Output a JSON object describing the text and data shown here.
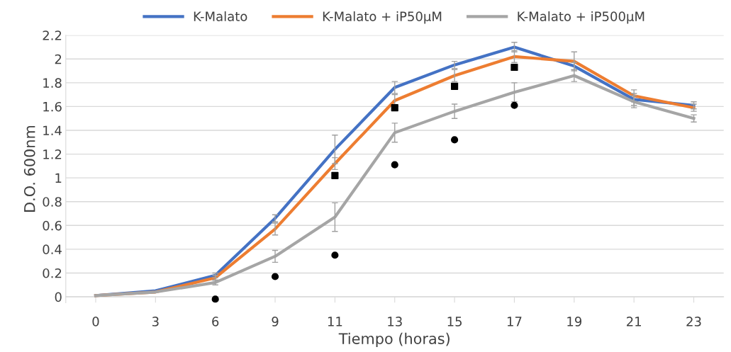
{
  "chart_data": {
    "type": "line",
    "xlabel": "Tiempo (horas)",
    "ylabel": "D.O. 600nm",
    "categories": [
      "0",
      "3",
      "6",
      "9",
      "11",
      "13",
      "15",
      "17",
      "19",
      "21",
      "23"
    ],
    "ylim": [
      -0.05,
      2.2
    ],
    "yticks": [
      0,
      0.2,
      0.4,
      0.6,
      0.8,
      1,
      1.2,
      1.4,
      1.6,
      1.8,
      2,
      2.2
    ],
    "grid": "y",
    "legend": "top",
    "marker": "none",
    "line_style": "solid",
    "series": [
      {
        "name": "K-Malato",
        "color": "#4472c4",
        "values": [
          0.01,
          0.05,
          0.18,
          0.66,
          1.24,
          1.76,
          1.95,
          2.1,
          1.94,
          1.66,
          1.61
        ],
        "errors": [
          null,
          null,
          0.02,
          0.03,
          0.12,
          0.05,
          0.03,
          0.04,
          0.03,
          0.05,
          0.03
        ]
      },
      {
        "name": "K-Malato + iP50µM",
        "color": "#ed7d31",
        "values": [
          0.01,
          0.04,
          0.16,
          0.57,
          1.12,
          1.65,
          1.86,
          2.02,
          1.98,
          1.69,
          1.59
        ],
        "errors": [
          null,
          null,
          0.02,
          0.05,
          0.05,
          0.05,
          0.05,
          0.05,
          0.08,
          0.05,
          0.03
        ]
      },
      {
        "name": "K-Malato + iP500µM",
        "color": "#a5a5a5",
        "values": [
          0.01,
          0.04,
          0.12,
          0.34,
          0.67,
          1.38,
          1.56,
          1.72,
          1.86,
          1.64,
          1.5
        ],
        "errors": [
          null,
          null,
          0.02,
          0.05,
          0.12,
          0.08,
          0.06,
          0.08,
          0.05,
          0.05,
          0.03
        ]
      },
      {
        "type": "scatter",
        "marker": "square",
        "color": "#000000",
        "x": [
          "11",
          "13",
          "15",
          "17"
        ],
        "values": [
          1.02,
          1.59,
          1.77,
          1.93
        ]
      },
      {
        "type": "scatter",
        "marker": "circle",
        "color": "#000000",
        "x": [
          "6",
          "9",
          "11",
          "13",
          "15",
          "17"
        ],
        "values": [
          -0.02,
          0.17,
          0.35,
          1.11,
          1.32,
          1.61
        ]
      }
    ]
  }
}
